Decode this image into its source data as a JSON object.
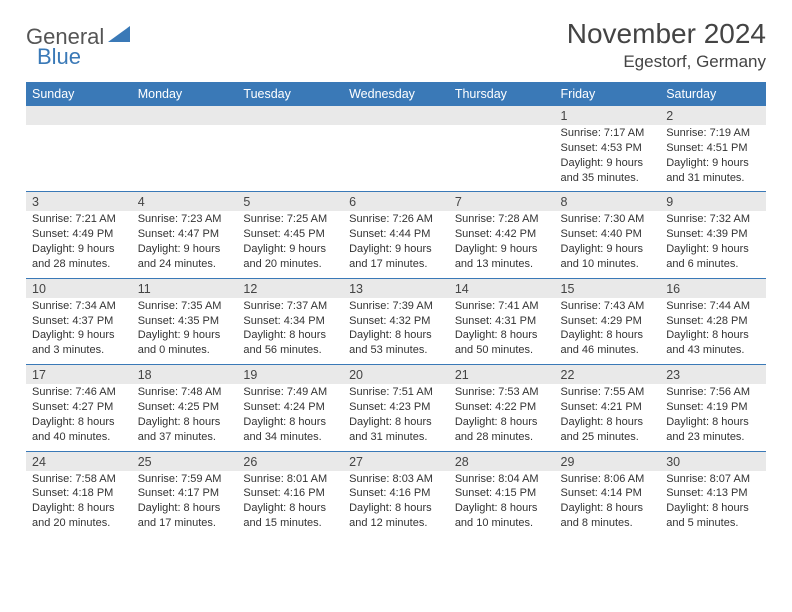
{
  "logo": {
    "part1": "General",
    "part2": "Blue"
  },
  "title": "November 2024",
  "location": "Egestorf, Germany",
  "colors": {
    "accent": "#3a79b7",
    "header_bg": "#3a79b7",
    "header_text": "#ffffff",
    "daynum_bg": "#e9e9e9",
    "body_text": "#333333",
    "title_text": "#444444"
  },
  "weekdays": [
    "Sunday",
    "Monday",
    "Tuesday",
    "Wednesday",
    "Thursday",
    "Friday",
    "Saturday"
  ],
  "weeks": [
    [
      {
        "n": "",
        "sr": "",
        "ss": "",
        "dl": ""
      },
      {
        "n": "",
        "sr": "",
        "ss": "",
        "dl": ""
      },
      {
        "n": "",
        "sr": "",
        "ss": "",
        "dl": ""
      },
      {
        "n": "",
        "sr": "",
        "ss": "",
        "dl": ""
      },
      {
        "n": "",
        "sr": "",
        "ss": "",
        "dl": ""
      },
      {
        "n": "1",
        "sr": "Sunrise: 7:17 AM",
        "ss": "Sunset: 4:53 PM",
        "dl": "Daylight: 9 hours and 35 minutes."
      },
      {
        "n": "2",
        "sr": "Sunrise: 7:19 AM",
        "ss": "Sunset: 4:51 PM",
        "dl": "Daylight: 9 hours and 31 minutes."
      }
    ],
    [
      {
        "n": "3",
        "sr": "Sunrise: 7:21 AM",
        "ss": "Sunset: 4:49 PM",
        "dl": "Daylight: 9 hours and 28 minutes."
      },
      {
        "n": "4",
        "sr": "Sunrise: 7:23 AM",
        "ss": "Sunset: 4:47 PM",
        "dl": "Daylight: 9 hours and 24 minutes."
      },
      {
        "n": "5",
        "sr": "Sunrise: 7:25 AM",
        "ss": "Sunset: 4:45 PM",
        "dl": "Daylight: 9 hours and 20 minutes."
      },
      {
        "n": "6",
        "sr": "Sunrise: 7:26 AM",
        "ss": "Sunset: 4:44 PM",
        "dl": "Daylight: 9 hours and 17 minutes."
      },
      {
        "n": "7",
        "sr": "Sunrise: 7:28 AM",
        "ss": "Sunset: 4:42 PM",
        "dl": "Daylight: 9 hours and 13 minutes."
      },
      {
        "n": "8",
        "sr": "Sunrise: 7:30 AM",
        "ss": "Sunset: 4:40 PM",
        "dl": "Daylight: 9 hours and 10 minutes."
      },
      {
        "n": "9",
        "sr": "Sunrise: 7:32 AM",
        "ss": "Sunset: 4:39 PM",
        "dl": "Daylight: 9 hours and 6 minutes."
      }
    ],
    [
      {
        "n": "10",
        "sr": "Sunrise: 7:34 AM",
        "ss": "Sunset: 4:37 PM",
        "dl": "Daylight: 9 hours and 3 minutes."
      },
      {
        "n": "11",
        "sr": "Sunrise: 7:35 AM",
        "ss": "Sunset: 4:35 PM",
        "dl": "Daylight: 9 hours and 0 minutes."
      },
      {
        "n": "12",
        "sr": "Sunrise: 7:37 AM",
        "ss": "Sunset: 4:34 PM",
        "dl": "Daylight: 8 hours and 56 minutes."
      },
      {
        "n": "13",
        "sr": "Sunrise: 7:39 AM",
        "ss": "Sunset: 4:32 PM",
        "dl": "Daylight: 8 hours and 53 minutes."
      },
      {
        "n": "14",
        "sr": "Sunrise: 7:41 AM",
        "ss": "Sunset: 4:31 PM",
        "dl": "Daylight: 8 hours and 50 minutes."
      },
      {
        "n": "15",
        "sr": "Sunrise: 7:43 AM",
        "ss": "Sunset: 4:29 PM",
        "dl": "Daylight: 8 hours and 46 minutes."
      },
      {
        "n": "16",
        "sr": "Sunrise: 7:44 AM",
        "ss": "Sunset: 4:28 PM",
        "dl": "Daylight: 8 hours and 43 minutes."
      }
    ],
    [
      {
        "n": "17",
        "sr": "Sunrise: 7:46 AM",
        "ss": "Sunset: 4:27 PM",
        "dl": "Daylight: 8 hours and 40 minutes."
      },
      {
        "n": "18",
        "sr": "Sunrise: 7:48 AM",
        "ss": "Sunset: 4:25 PM",
        "dl": "Daylight: 8 hours and 37 minutes."
      },
      {
        "n": "19",
        "sr": "Sunrise: 7:49 AM",
        "ss": "Sunset: 4:24 PM",
        "dl": "Daylight: 8 hours and 34 minutes."
      },
      {
        "n": "20",
        "sr": "Sunrise: 7:51 AM",
        "ss": "Sunset: 4:23 PM",
        "dl": "Daylight: 8 hours and 31 minutes."
      },
      {
        "n": "21",
        "sr": "Sunrise: 7:53 AM",
        "ss": "Sunset: 4:22 PM",
        "dl": "Daylight: 8 hours and 28 minutes."
      },
      {
        "n": "22",
        "sr": "Sunrise: 7:55 AM",
        "ss": "Sunset: 4:21 PM",
        "dl": "Daylight: 8 hours and 25 minutes."
      },
      {
        "n": "23",
        "sr": "Sunrise: 7:56 AM",
        "ss": "Sunset: 4:19 PM",
        "dl": "Daylight: 8 hours and 23 minutes."
      }
    ],
    [
      {
        "n": "24",
        "sr": "Sunrise: 7:58 AM",
        "ss": "Sunset: 4:18 PM",
        "dl": "Daylight: 8 hours and 20 minutes."
      },
      {
        "n": "25",
        "sr": "Sunrise: 7:59 AM",
        "ss": "Sunset: 4:17 PM",
        "dl": "Daylight: 8 hours and 17 minutes."
      },
      {
        "n": "26",
        "sr": "Sunrise: 8:01 AM",
        "ss": "Sunset: 4:16 PM",
        "dl": "Daylight: 8 hours and 15 minutes."
      },
      {
        "n": "27",
        "sr": "Sunrise: 8:03 AM",
        "ss": "Sunset: 4:16 PM",
        "dl": "Daylight: 8 hours and 12 minutes."
      },
      {
        "n": "28",
        "sr": "Sunrise: 8:04 AM",
        "ss": "Sunset: 4:15 PM",
        "dl": "Daylight: 8 hours and 10 minutes."
      },
      {
        "n": "29",
        "sr": "Sunrise: 8:06 AM",
        "ss": "Sunset: 4:14 PM",
        "dl": "Daylight: 8 hours and 8 minutes."
      },
      {
        "n": "30",
        "sr": "Sunrise: 8:07 AM",
        "ss": "Sunset: 4:13 PM",
        "dl": "Daylight: 8 hours and 5 minutes."
      }
    ]
  ]
}
